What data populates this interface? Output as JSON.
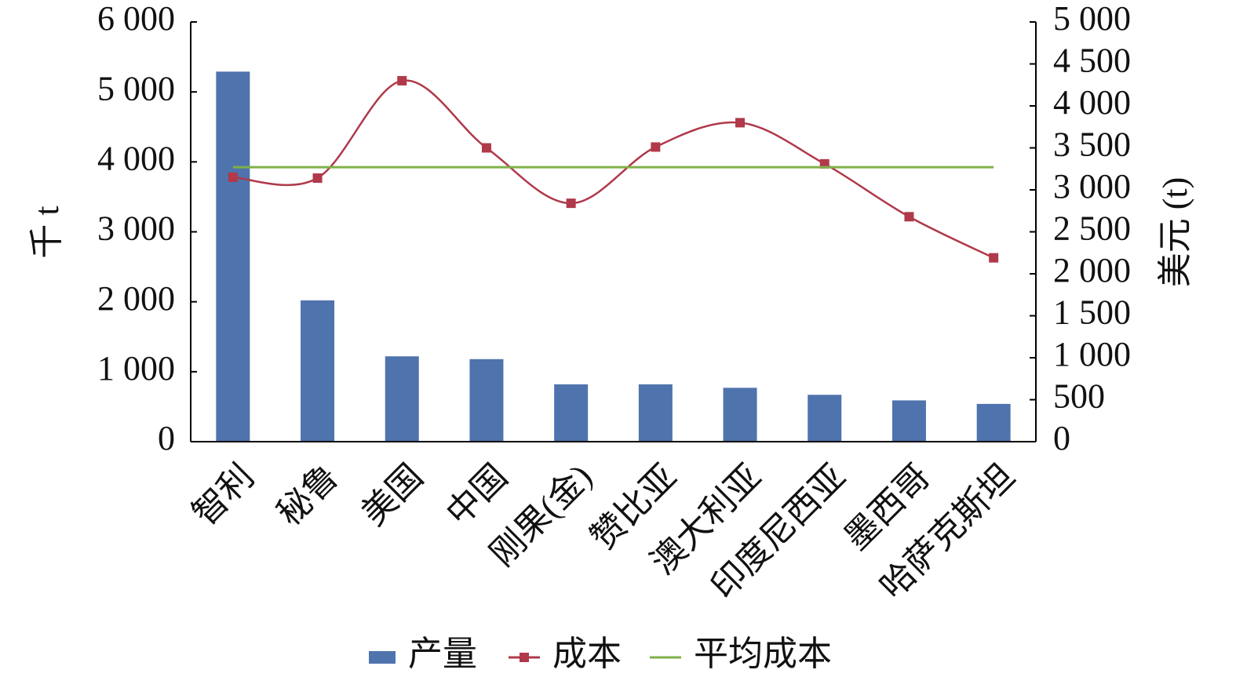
{
  "chart_data": {
    "type": "bar-line",
    "categories": [
      "智利",
      "秘鲁",
      "美国",
      "中国",
      "刚果(金)",
      "赞比亚",
      "澳大利亚",
      "印度尼西亚",
      "墨西哥",
      "哈萨克斯坦"
    ],
    "series": [
      {
        "name": "产量",
        "type": "bar",
        "color": "#4f73ad",
        "values": [
          5290,
          2020,
          1220,
          1180,
          820,
          820,
          770,
          670,
          590,
          540
        ]
      },
      {
        "name": "成本",
        "type": "line",
        "axis": "y2",
        "color": "#b0394a",
        "values": [
          3150,
          3140,
          4300,
          3500,
          2840,
          3510,
          3800,
          3310,
          2680,
          2190
        ]
      },
      {
        "name": "平均成本",
        "type": "line",
        "axis": "y2",
        "color": "#7fb04a",
        "values": [
          3270,
          3270,
          3270,
          3270,
          3270,
          3270,
          3270,
          3270,
          3270,
          3270
        ]
      }
    ],
    "ylabel": "千 t",
    "y2label": "美元 (t)",
    "ylim": [
      0,
      6000
    ],
    "yticks": [
      0,
      {
        "value": 1000,
        "label": "1 000"
      },
      {
        "value": 2000,
        "label": "2 000"
      },
      {
        "value": 3000,
        "label": "3 000"
      },
      {
        "value": 4000,
        "label": "4 000"
      },
      {
        "value": 5000,
        "label": "5 000"
      },
      {
        "value": 6000,
        "label": "6 000"
      }
    ],
    "y2lim": [
      0,
      5000
    ],
    "y2ticks": [
      0,
      500,
      {
        "value": 1000,
        "label": "1 000"
      },
      {
        "value": 1500,
        "label": "1 500"
      },
      {
        "value": 2000,
        "label": "2 000"
      },
      {
        "value": 2500,
        "label": "2 500"
      },
      {
        "value": 3000,
        "label": "3 000"
      },
      {
        "value": 3500,
        "label": "3 500"
      },
      {
        "value": 4000,
        "label": "4 000"
      },
      {
        "value": 4500,
        "label": "4 500"
      },
      {
        "value": 5000,
        "label": "5 000"
      }
    ],
    "legend": "bottom"
  }
}
